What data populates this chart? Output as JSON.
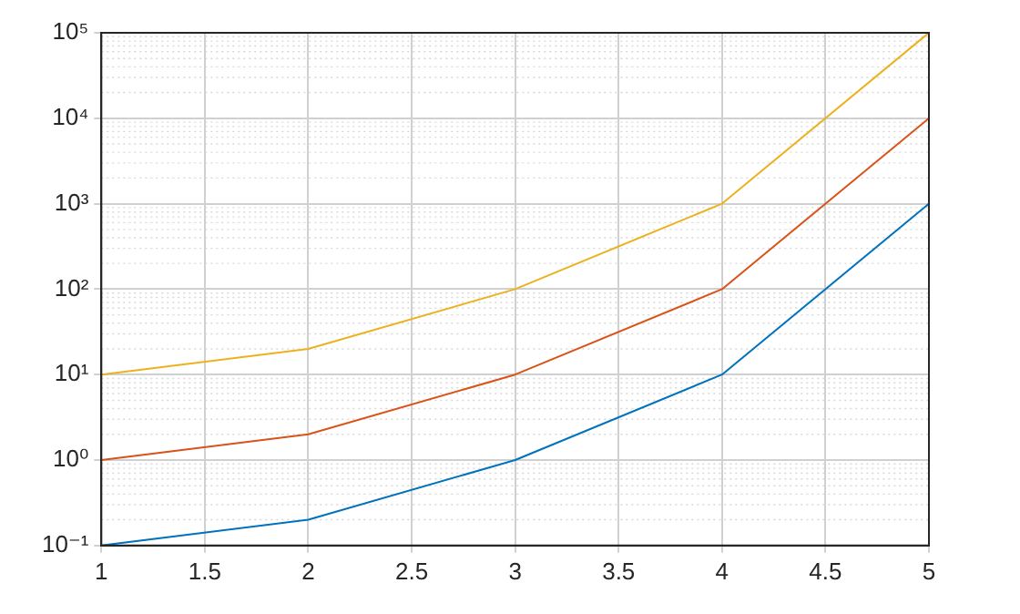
{
  "chart_data": {
    "type": "line",
    "x": [
      1,
      2,
      3,
      4,
      5
    ],
    "series": [
      {
        "color": "#0072bd",
        "values": [
          0.1,
          0.2,
          1,
          10,
          1000
        ]
      },
      {
        "color": "#d95319",
        "values": [
          1,
          2,
          10,
          100,
          10000
        ]
      },
      {
        "color": "#edb120",
        "values": [
          10,
          20,
          100,
          1000,
          100000
        ]
      }
    ],
    "xlim": [
      1,
      5
    ],
    "xticks": [
      1,
      1.5,
      2,
      2.5,
      3,
      3.5,
      4,
      4.5,
      5
    ],
    "ylim": [
      0.1,
      100000
    ],
    "yticks": [
      {
        "value": 0.1,
        "label": "10⁻¹"
      },
      {
        "value": 1,
        "label": "10⁰"
      },
      {
        "value": 10,
        "label": "10¹"
      },
      {
        "value": 100,
        "label": "10²"
      },
      {
        "value": 1000,
        "label": "10³"
      },
      {
        "value": 10000,
        "label": "10⁴"
      },
      {
        "value": 100000,
        "label": "10⁵"
      }
    ],
    "log": "y",
    "grid": true,
    "legend": false,
    "marker": "none",
    "line_style": "solid"
  }
}
